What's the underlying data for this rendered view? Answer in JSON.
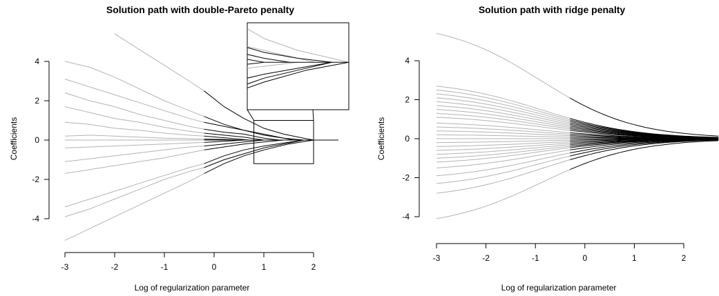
{
  "chart_data": [
    {
      "type": "line",
      "title": "Solution path with double-Pareto penalty",
      "xlabel": "Log of regularization parameter",
      "ylabel": "Coefficients",
      "xlim": [
        -3,
        2.5
      ],
      "ylim": [
        -5.2,
        5.4
      ],
      "xticks": [
        -3,
        -2,
        -1,
        0,
        1,
        2
      ],
      "yticks": [
        -4,
        -2,
        0,
        2,
        4
      ],
      "grid": false,
      "legend": "none",
      "colors": {
        "early": "#b3b3b3",
        "late": "#000000"
      },
      "switch_x": -0.2,
      "zoom_box": {
        "x": [
          0.8,
          2.0
        ],
        "y": [
          -1.2,
          1.0
        ]
      },
      "series": [
        {
          "points": [
            [
              -3,
              3.1
            ],
            [
              -2.5,
              2.7
            ],
            [
              -2,
              2.3
            ],
            [
              -1.5,
              1.9
            ],
            [
              -1,
              1.5
            ],
            [
              -0.5,
              1.1
            ],
            [
              -0.2,
              0.9
            ],
            [
              0.2,
              0.7
            ],
            [
              0.6,
              0.5
            ],
            [
              1.0,
              0.3
            ],
            [
              1.4,
              0.1
            ],
            [
              1.6,
              0
            ]
          ]
        },
        {
          "points": [
            [
              -3,
              2.4
            ],
            [
              -2.5,
              2.0
            ],
            [
              -2,
              1.7
            ],
            [
              -1.5,
              1.3
            ],
            [
              -1,
              1.0
            ],
            [
              -0.5,
              0.7
            ],
            [
              -0.2,
              0.55
            ],
            [
              0.2,
              0.4
            ],
            [
              0.6,
              0.3
            ],
            [
              1.0,
              0.1
            ],
            [
              1.3,
              0
            ]
          ]
        },
        {
          "points": [
            [
              -3,
              1.7
            ],
            [
              -2.5,
              1.4
            ],
            [
              -2,
              1.1
            ],
            [
              -1.5,
              0.9
            ],
            [
              -1,
              0.65
            ],
            [
              -0.5,
              0.45
            ],
            [
              -0.2,
              0.35
            ],
            [
              0.2,
              0.25
            ],
            [
              0.6,
              0.15
            ],
            [
              1.0,
              0
            ]
          ]
        },
        {
          "points": [
            [
              -3,
              0.9
            ],
            [
              -2.5,
              0.8
            ],
            [
              -2,
              0.6
            ],
            [
              -1.5,
              0.5
            ],
            [
              -1,
              0.35
            ],
            [
              -0.5,
              0.25
            ],
            [
              -0.2,
              0.2
            ],
            [
              0.3,
              0.1
            ],
            [
              0.7,
              0
            ]
          ]
        },
        {
          "points": [
            [
              -3,
              -0.4
            ],
            [
              -2.5,
              -0.35
            ],
            [
              -2,
              -0.3
            ],
            [
              -1.5,
              -0.25
            ],
            [
              -1,
              -0.2
            ],
            [
              -0.5,
              -0.15
            ],
            [
              -0.2,
              -0.12
            ],
            [
              0.3,
              -0.05
            ],
            [
              0.6,
              0
            ]
          ]
        },
        {
          "points": [
            [
              -3,
              -1.1
            ],
            [
              -2.5,
              -0.95
            ],
            [
              -2,
              -0.8
            ],
            [
              -1.5,
              -0.65
            ],
            [
              -1,
              -0.5
            ],
            [
              -0.5,
              -0.35
            ],
            [
              -0.2,
              -0.3
            ],
            [
              0.2,
              -0.2
            ],
            [
              0.6,
              -0.1
            ],
            [
              1.0,
              0
            ]
          ]
        },
        {
          "points": [
            [
              -3,
              -1.7
            ],
            [
              -2.5,
              -1.5
            ],
            [
              -2,
              -1.3
            ],
            [
              -1.5,
              -1.1
            ],
            [
              -1,
              -0.9
            ],
            [
              -0.5,
              -0.65
            ],
            [
              -0.2,
              -0.5
            ],
            [
              0.2,
              -0.35
            ],
            [
              0.6,
              -0.2
            ],
            [
              1.0,
              -0.1
            ],
            [
              1.4,
              0
            ]
          ]
        },
        {
          "points": [
            [
              -3,
              -3.4
            ],
            [
              -2.5,
              -3.0
            ],
            [
              -2,
              -2.6
            ],
            [
              -1.5,
              -2.2
            ],
            [
              -1,
              -1.8
            ],
            [
              -0.5,
              -1.4
            ],
            [
              -0.2,
              -1.2
            ],
            [
              0.2,
              -0.8
            ],
            [
              0.6,
              -0.5
            ],
            [
              1.0,
              -0.3
            ],
            [
              1.4,
              -0.15
            ],
            [
              1.8,
              0
            ]
          ]
        },
        {
          "points": [
            [
              -3,
              -5.1
            ],
            [
              -2.5,
              -4.5
            ],
            [
              -2,
              -3.9
            ],
            [
              -1.5,
              -3.3
            ],
            [
              -1,
              -2.7
            ],
            [
              -0.5,
              -2.1
            ],
            [
              -0.2,
              -1.7
            ],
            [
              0.2,
              -1.2
            ],
            [
              0.6,
              -0.8
            ],
            [
              1.0,
              -0.5
            ],
            [
              1.5,
              -0.2
            ],
            [
              2.0,
              0
            ]
          ]
        },
        {
          "points": [
            [
              -2,
              5.4
            ],
            [
              -1.5,
              4.6
            ],
            [
              -1,
              3.8
            ],
            [
              -0.5,
              3.0
            ],
            [
              -0.2,
              2.5
            ],
            [
              0.2,
              1.7
            ],
            [
              0.6,
              1.1
            ],
            [
              1.0,
              0.6
            ],
            [
              1.4,
              0.3
            ],
            [
              1.8,
              0.1
            ],
            [
              2.0,
              0
            ]
          ]
        },
        {
          "points": [
            [
              -3,
              4.0
            ],
            [
              -2.5,
              3.7
            ],
            [
              -2,
              3.2
            ],
            [
              -1.5,
              2.6
            ],
            [
              -1,
              2.0
            ],
            [
              -0.5,
              1.5
            ],
            [
              -0.2,
              1.2
            ],
            [
              0.2,
              0.8
            ],
            [
              0.6,
              0.5
            ],
            [
              1.0,
              0.25
            ],
            [
              1.4,
              0.1
            ],
            [
              1.8,
              0
            ]
          ]
        },
        {
          "points": [
            [
              -3,
              -3.9
            ],
            [
              -2.5,
              -3.5
            ],
            [
              -2,
              -3.0
            ],
            [
              -1.5,
              -2.5
            ],
            [
              -1,
              -2.0
            ],
            [
              -0.5,
              -1.6
            ],
            [
              -0.2,
              -1.4
            ],
            [
              0.2,
              -1.0
            ],
            [
              0.6,
              -0.7
            ],
            [
              1.0,
              -0.4
            ],
            [
              1.4,
              -0.2
            ],
            [
              1.8,
              0
            ]
          ]
        },
        {
          "points": [
            [
              -3,
              0.2
            ],
            [
              -2.5,
              0.25
            ],
            [
              -2,
              0.2
            ],
            [
              -1.5,
              0.15
            ],
            [
              -1,
              0.1
            ],
            [
              -0.5,
              0.07
            ],
            [
              -0.2,
              0.05
            ],
            [
              0.2,
              0.03
            ],
            [
              0.5,
              0
            ]
          ]
        },
        {
          "points": [
            [
              -3,
              0
            ],
            [
              -2,
              0
            ],
            [
              -1,
              0
            ],
            [
              -0.2,
              0
            ],
            [
              0,
              0
            ],
            [
              1,
              0
            ],
            [
              2,
              0
            ],
            [
              2.5,
              0
            ]
          ]
        }
      ]
    },
    {
      "type": "line",
      "title": "Solution path with ridge penalty",
      "xlabel": "Log of regularization parameter",
      "ylabel": "Coefficients",
      "xlim": [
        -3,
        2.7
      ],
      "ylim": [
        -4.5,
        5.4
      ],
      "xticks": [
        -3,
        -2,
        -1,
        0,
        1,
        2
      ],
      "yticks": [
        -4,
        -2,
        0,
        2,
        4
      ],
      "grid": false,
      "legend": "none",
      "colors": {
        "early": "#b3b3b3",
        "late": "#000000"
      },
      "switch_x": -0.3,
      "series_start": [
        5.4,
        2.7,
        2.5,
        2.3,
        2.1,
        1.9,
        1.7,
        1.5,
        1.3,
        1.1,
        0.8,
        0.6,
        0.4,
        0.2,
        0.0,
        -0.2,
        -0.4,
        -0.6,
        -0.8,
        -1.0,
        -1.2,
        -1.5,
        -1.9,
        -2.3,
        -2.8,
        -4.1
      ]
    }
  ]
}
